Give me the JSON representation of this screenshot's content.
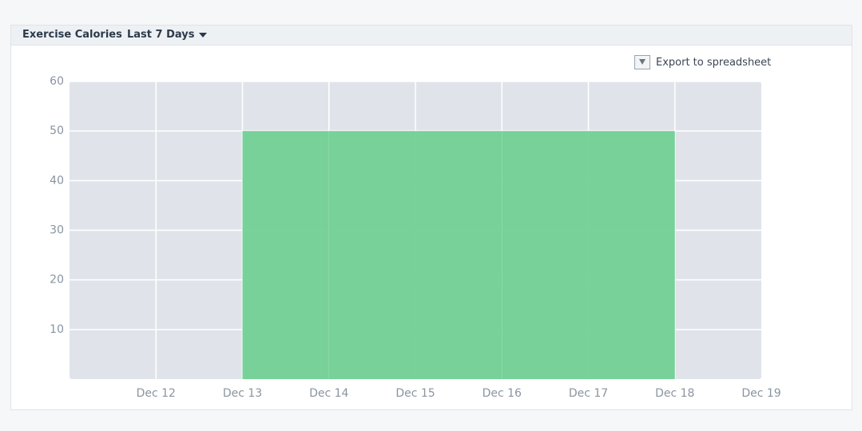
{
  "header": {
    "title": "Exercise Calories",
    "period": "Last 7 Days"
  },
  "export_label": "Export to spreadsheet",
  "chart_data": {
    "type": "step-area",
    "categories": [
      null,
      "Dec 12",
      "Dec 13",
      "Dec 14",
      "Dec 15",
      "Dec 16",
      "Dec 17",
      "Dec 18",
      "Dec 19"
    ],
    "values": [
      0,
      0,
      50,
      50,
      50,
      50,
      50,
      0,
      0
    ],
    "color": "#71d095",
    "ylim": [
      0,
      60
    ],
    "yticks": [
      10,
      20,
      30,
      40,
      50,
      60
    ],
    "grid": true
  }
}
